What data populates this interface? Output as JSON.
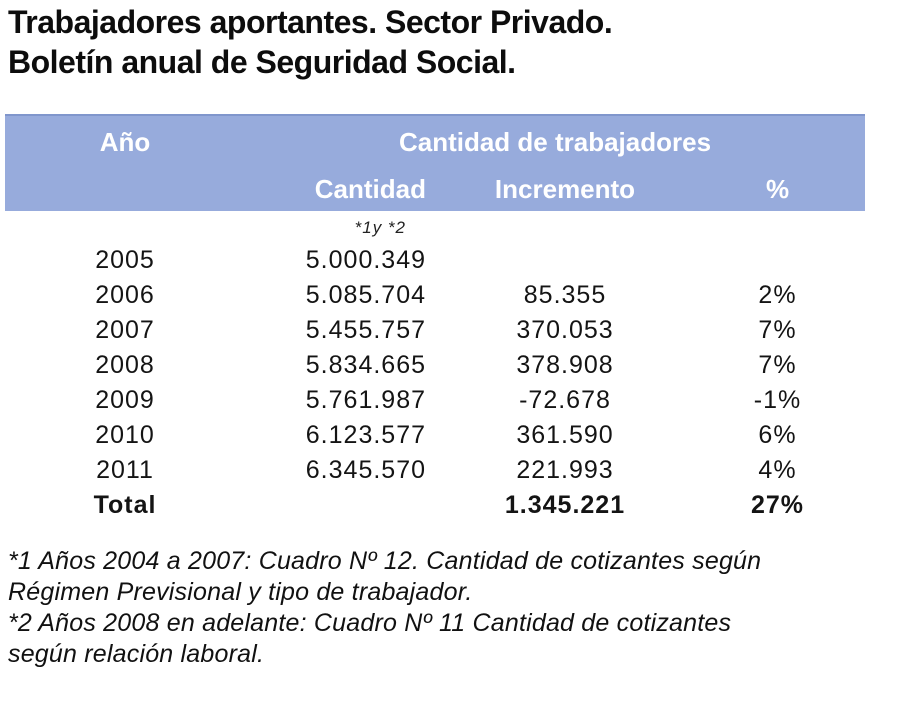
{
  "title": {
    "line1": "Trabajadores aportantes. Sector Privado.",
    "line2": "Boletín anual de Seguridad Social."
  },
  "table": {
    "header": {
      "col_year": "Año",
      "col_group": "Cantidad de trabajadores",
      "sub_cantidad": "Cantidad",
      "sub_incremento": "Incremento",
      "sub_pct": "%"
    },
    "note_ref": "*1y *2",
    "rows": [
      {
        "year": "2005",
        "cantidad": "5.000.349",
        "incremento": "",
        "pct": ""
      },
      {
        "year": "2006",
        "cantidad": "5.085.704",
        "incremento": "85.355",
        "pct": "2%"
      },
      {
        "year": "2007",
        "cantidad": "5.455.757",
        "incremento": "370.053",
        "pct": "7%"
      },
      {
        "year": "2008",
        "cantidad": "5.834.665",
        "incremento": "378.908",
        "pct": "7%"
      },
      {
        "year": "2009",
        "cantidad": "5.761.987",
        "incremento": "-72.678",
        "pct": "-1%"
      },
      {
        "year": "2010",
        "cantidad": "6.123.577",
        "incremento": "361.590",
        "pct": "6%"
      },
      {
        "year": "2011",
        "cantidad": "6.345.570",
        "incremento": "221.993",
        "pct": "4%"
      }
    ],
    "total": {
      "label": "Total",
      "cantidad": "",
      "incremento": "1.345.221",
      "pct": "27%"
    }
  },
  "footnotes": [
    {
      "lines": [
        "*1 Años 2004 a 2007: Cuadro Nº 12. Cantidad de cotizantes según",
        "Régimen Previsional y tipo de trabajador."
      ]
    },
    {
      "lines": [
        "*2 Años 2008 en adelante: Cuadro Nº 11 Cantidad de cotizantes",
        "según relación laboral."
      ]
    }
  ],
  "colors": {
    "header_bg": "#97abdc",
    "header_border": "#8096cc",
    "header_text": "#ffffff",
    "body_text": "#141414"
  }
}
